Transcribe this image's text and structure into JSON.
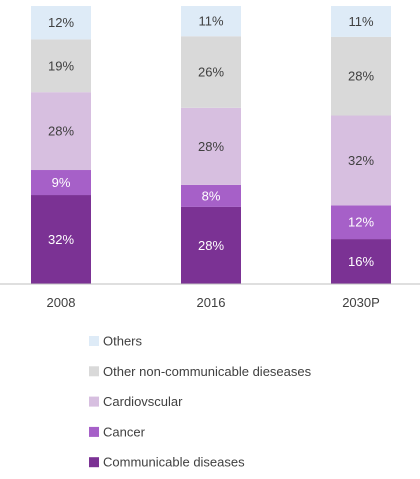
{
  "chart_data": {
    "type": "bar",
    "stacked": true,
    "categories": [
      "2008",
      "2016",
      "2030P"
    ],
    "series": [
      {
        "name": "Communicable diseases",
        "values": [
          32,
          28,
          16
        ],
        "color": "#7b3294",
        "label_color": "#ffffff"
      },
      {
        "name": "Cancer",
        "values": [
          9,
          8,
          12
        ],
        "color": "#a660c8",
        "label_color": "#ffffff"
      },
      {
        "name": "Cardiovscular",
        "values": [
          28,
          28,
          32
        ],
        "color": "#d7bfe0",
        "label_color": "#404040"
      },
      {
        "name": "Other non-communicable dieseases",
        "values": [
          19,
          26,
          28
        ],
        "color": "#d9d9d9",
        "label_color": "#404040"
      },
      {
        "name": "Others",
        "values": [
          12,
          11,
          11
        ],
        "color": "#deebf7",
        "label_color": "#404040"
      }
    ],
    "value_suffix": "%",
    "legend_position": "bottom",
    "legend_order": [
      "Others",
      "Other non-communicable dieseases",
      "Cardiovscular",
      "Cancer",
      "Communicable diseases"
    ],
    "grid": false,
    "ylim": [
      0,
      100
    ]
  }
}
